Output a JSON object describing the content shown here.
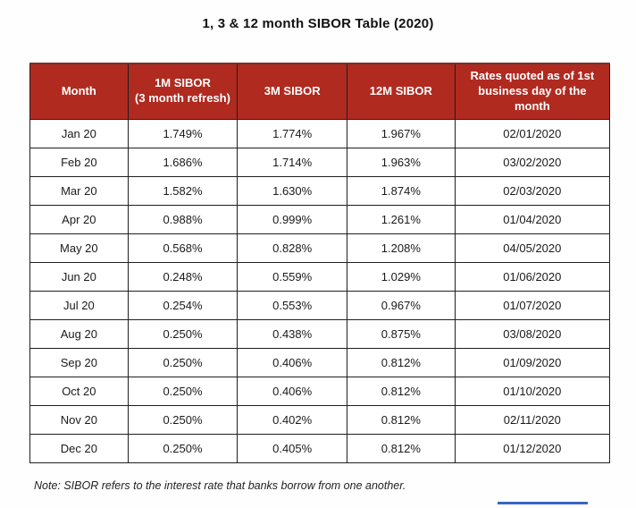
{
  "title": "1, 3 & 12 month SIBOR Table (2020)",
  "table": {
    "headers": [
      "Month",
      "1M SIBOR\n(3 month refresh)",
      "3M SIBOR",
      "12M SIBOR",
      "Rates quoted as of 1st business day of the month"
    ],
    "rows": [
      [
        "Jan 20",
        "1.749%",
        "1.774%",
        "1.967%",
        "02/01/2020"
      ],
      [
        "Feb 20",
        "1.686%",
        "1.714%",
        "1.963%",
        "03/02/2020"
      ],
      [
        "Mar 20",
        "1.582%",
        "1.630%",
        "1.874%",
        "02/03/2020"
      ],
      [
        "Apr 20",
        "0.988%",
        "0.999%",
        "1.261%",
        "01/04/2020"
      ],
      [
        "May 20",
        "0.568%",
        "0.828%",
        "1.208%",
        "04/05/2020"
      ],
      [
        "Jun 20",
        "0.248%",
        "0.559%",
        "1.029%",
        "01/06/2020"
      ],
      [
        "Jul 20",
        "0.254%",
        "0.553%",
        "0.967%",
        "01/07/2020"
      ],
      [
        "Aug 20",
        "0.250%",
        "0.438%",
        "0.875%",
        "03/08/2020"
      ],
      [
        "Sep 20",
        "0.250%",
        "0.406%",
        "0.812%",
        "01/09/2020"
      ],
      [
        "Oct 20",
        "0.250%",
        "0.406%",
        "0.812%",
        "01/10/2020"
      ],
      [
        "Nov 20",
        "0.250%",
        "0.402%",
        "0.812%",
        "02/11/2020"
      ],
      [
        "Dec 20",
        "0.250%",
        "0.405%",
        "0.812%",
        "01/12/2020"
      ]
    ]
  },
  "note": "Note: SIBOR refers to the interest rate that banks borrow from one another.",
  "colors": {
    "header_bg": "#b02a20",
    "header_text": "#ffffff",
    "border": "#1f1f1f",
    "accent_line": "#3a66c4"
  },
  "chart_data": {
    "type": "table",
    "title": "1, 3 & 12 month SIBOR Table (2020)",
    "columns": [
      "Month",
      "1M SIBOR (3 month refresh)",
      "3M SIBOR",
      "12M SIBOR",
      "Rates quoted as of 1st business day of the month"
    ],
    "rows": [
      [
        "Jan 20",
        "1.749%",
        "1.774%",
        "1.967%",
        "02/01/2020"
      ],
      [
        "Feb 20",
        "1.686%",
        "1.714%",
        "1.963%",
        "03/02/2020"
      ],
      [
        "Mar 20",
        "1.582%",
        "1.630%",
        "1.874%",
        "02/03/2020"
      ],
      [
        "Apr 20",
        "0.988%",
        "0.999%",
        "1.261%",
        "01/04/2020"
      ],
      [
        "May 20",
        "0.568%",
        "0.828%",
        "1.208%",
        "04/05/2020"
      ],
      [
        "Jun 20",
        "0.248%",
        "0.559%",
        "1.029%",
        "01/06/2020"
      ],
      [
        "Jul 20",
        "0.254%",
        "0.553%",
        "0.967%",
        "01/07/2020"
      ],
      [
        "Aug 20",
        "0.250%",
        "0.438%",
        "0.875%",
        "03/08/2020"
      ],
      [
        "Sep 20",
        "0.250%",
        "0.406%",
        "0.812%",
        "01/09/2020"
      ],
      [
        "Oct 20",
        "0.250%",
        "0.406%",
        "0.812%",
        "01/10/2020"
      ],
      [
        "Nov 20",
        "0.250%",
        "0.402%",
        "0.812%",
        "02/11/2020"
      ],
      [
        "Dec 20",
        "0.250%",
        "0.405%",
        "0.812%",
        "01/12/2020"
      ]
    ]
  }
}
